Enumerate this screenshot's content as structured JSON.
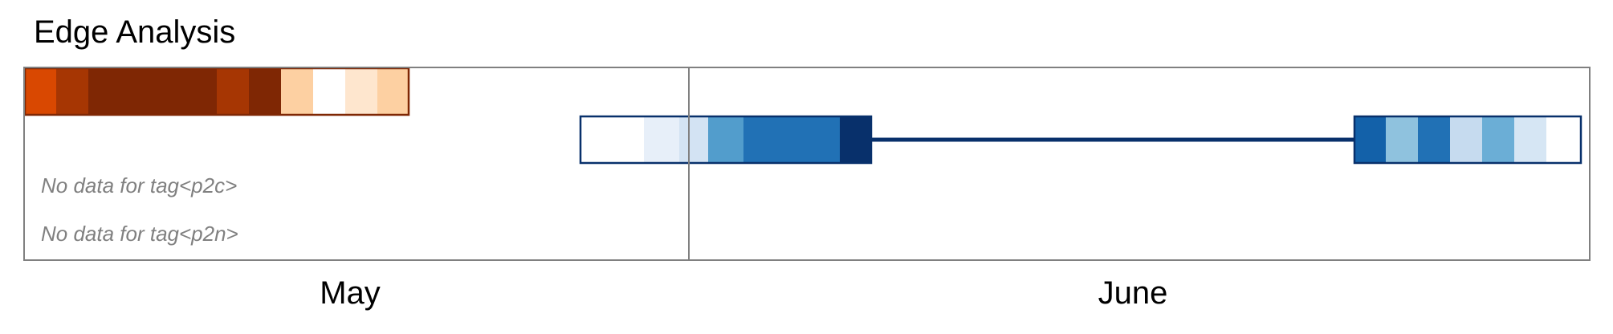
{
  "title": "Edge Analysis",
  "chart_data": {
    "type": "heatmap-timeline",
    "title": "Edge Analysis",
    "month_labels": [
      "May",
      "June"
    ],
    "rows": [
      {
        "id": "row-1",
        "palette": "oranges",
        "border_color": "#7f2704",
        "segments": [
          {
            "start": 1,
            "end": 2,
            "color": "#d94801"
          },
          {
            "start": 2,
            "end": 3,
            "color": "#a63603"
          },
          {
            "start": 3,
            "end": 7,
            "color": "#7f2704"
          },
          {
            "start": 7,
            "end": 8,
            "color": "#a63603"
          },
          {
            "start": 8,
            "end": 9,
            "color": "#7f2704"
          },
          {
            "start": 9,
            "end": 10,
            "color": "#fdd0a2"
          },
          {
            "start": 10,
            "end": 11,
            "color": "#ffffff"
          },
          {
            "start": 11,
            "end": 12,
            "color": "#fee6ce"
          },
          {
            "start": 12,
            "end": 13,
            "color": "#fdd0a2"
          }
        ]
      },
      {
        "id": "row-2",
        "palette": "blues",
        "border_color": "#08306b",
        "connector": {
          "start": 27,
          "end": 42.4
        },
        "segments": [
          {
            "start": 18.3,
            "end": 20.3,
            "color": "#ffffff"
          },
          {
            "start": 20.3,
            "end": 21.4,
            "color": "#e7eff9"
          },
          {
            "start": 21.4,
            "end": 22.3,
            "color": "#d3e3f3"
          },
          {
            "start": 22.3,
            "end": 23.4,
            "color": "#529dcc"
          },
          {
            "start": 23.4,
            "end": 26.4,
            "color": "#2171b5"
          },
          {
            "start": 26.4,
            "end": 27.4,
            "color": "#08306b"
          },
          {
            "start": 42.4,
            "end": 43.4,
            "color": "#1361a9"
          },
          {
            "start": 43.4,
            "end": 44.4,
            "color": "#8fc2de"
          },
          {
            "start": 44.4,
            "end": 45.4,
            "color": "#2171b5"
          },
          {
            "start": 45.4,
            "end": 46.4,
            "color": "#c6dbef"
          },
          {
            "start": 46.4,
            "end": 47.4,
            "color": "#6baed6"
          },
          {
            "start": 47.4,
            "end": 48.4,
            "color": "#d6e6f4"
          },
          {
            "start": 48.4,
            "end": 49.5,
            "color": "#ffffff"
          }
        ]
      },
      {
        "id": "row-3",
        "message": "No data for tag<p2c>"
      },
      {
        "id": "row-4",
        "message": "No data for tag<p2n>"
      }
    ],
    "x_range": [
      1,
      49.5
    ],
    "month_boundary": 21.7,
    "grid_color": "#808080"
  }
}
